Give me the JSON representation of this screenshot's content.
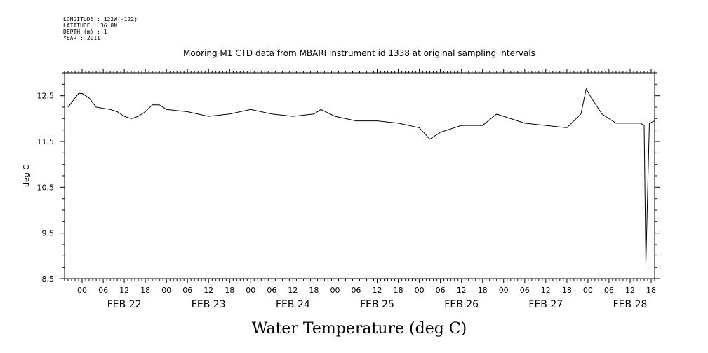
{
  "metadata": {
    "lines": [
      "LONGITUDE : 122W(-122)",
      "LATITUDE : 36.8N",
      "DEPTH (m) : 1",
      "YEAR : 2011"
    ]
  },
  "chart_data": {
    "type": "line",
    "title": "Mooring M1 CTD data from MBARI instrument id 1338 at original sampling intervals",
    "bottom_title": "Water Temperature (deg C)",
    "ylabel": "deg C",
    "xlabel": "",
    "ylim": [
      8.5,
      13.0
    ],
    "y_ticks": [
      "12.5",
      "11.5",
      "10.5",
      "9.5",
      "8.5"
    ],
    "x_hour_ticks": [
      "00",
      "06",
      "12",
      "18",
      "00",
      "06",
      "12",
      "18",
      "00",
      "06",
      "12",
      "18",
      "00",
      "06",
      "12",
      "18",
      "00",
      "06",
      "12",
      "18",
      "00",
      "06",
      "12",
      "18",
      "00",
      "06",
      "12",
      "18"
    ],
    "x_day_labels": [
      "FEB 22",
      "FEB 23",
      "FEB 24",
      "FEB 25",
      "FEB 26",
      "FEB 27",
      "FEB 28"
    ],
    "x_start_day": "FEB 21 19:00",
    "x_end_day": "FEB 28 19:00",
    "grid": false,
    "series": [
      {
        "points": [
          [
            "FEB 21 20:00",
            12.25
          ],
          [
            "FEB 21 22:00",
            12.45
          ],
          [
            "FEB 21 23:00",
            12.55
          ],
          [
            "FEB 22 00:00",
            12.55
          ],
          [
            "FEB 22 02:00",
            12.45
          ],
          [
            "FEB 22 04:00",
            12.25
          ],
          [
            "FEB 22 08:00",
            12.2
          ],
          [
            "FEB 22 10:00",
            12.15
          ],
          [
            "FEB 22 12:00",
            12.05
          ],
          [
            "FEB 22 14:00",
            12.0
          ],
          [
            "FEB 22 16:00",
            12.05
          ],
          [
            "FEB 22 18:00",
            12.15
          ],
          [
            "FEB 22 20:00",
            12.3
          ],
          [
            "FEB 22 22:00",
            12.3
          ],
          [
            "FEB 23 00:00",
            12.2
          ],
          [
            "FEB 23 06:00",
            12.15
          ],
          [
            "FEB 23 12:00",
            12.05
          ],
          [
            "FEB 23 18:00",
            12.1
          ],
          [
            "FEB 24 00:00",
            12.2
          ],
          [
            "FEB 24 06:00",
            12.1
          ],
          [
            "FEB 24 12:00",
            12.05
          ],
          [
            "FEB 24 18:00",
            12.1
          ],
          [
            "FEB 24 20:00",
            12.2
          ],
          [
            "FEB 25 00:00",
            12.05
          ],
          [
            "FEB 25 06:00",
            11.95
          ],
          [
            "FEB 25 12:00",
            11.95
          ],
          [
            "FEB 25 18:00",
            11.9
          ],
          [
            "FEB 26 00:00",
            11.8
          ],
          [
            "FEB 26 03:00",
            11.55
          ],
          [
            "FEB 26 06:00",
            11.7
          ],
          [
            "FEB 26 12:00",
            11.85
          ],
          [
            "FEB 26 18:00",
            11.85
          ],
          [
            "FEB 26 22:00",
            12.1
          ],
          [
            "FEB 27 00:00",
            12.05
          ],
          [
            "FEB 27 06:00",
            11.9
          ],
          [
            "FEB 27 12:00",
            11.85
          ],
          [
            "FEB 27 18:00",
            11.8
          ],
          [
            "FEB 27 22:00",
            12.1
          ],
          [
            "FEB 27 23:30",
            12.65
          ],
          [
            "FEB 28 01:00",
            12.45
          ],
          [
            "FEB 28 04:00",
            12.1
          ],
          [
            "FEB 28 08:00",
            11.9
          ],
          [
            "FEB 28 12:00",
            11.9
          ],
          [
            "FEB 28 15:00",
            11.9
          ],
          [
            "FEB 28 16:00",
            11.85
          ],
          [
            "FEB 28 16:30",
            8.8
          ],
          [
            "FEB 28 17:00",
            10.4
          ],
          [
            "FEB 28 17:30",
            11.9
          ],
          [
            "FEB 28 19:00",
            11.95
          ]
        ]
      }
    ]
  }
}
